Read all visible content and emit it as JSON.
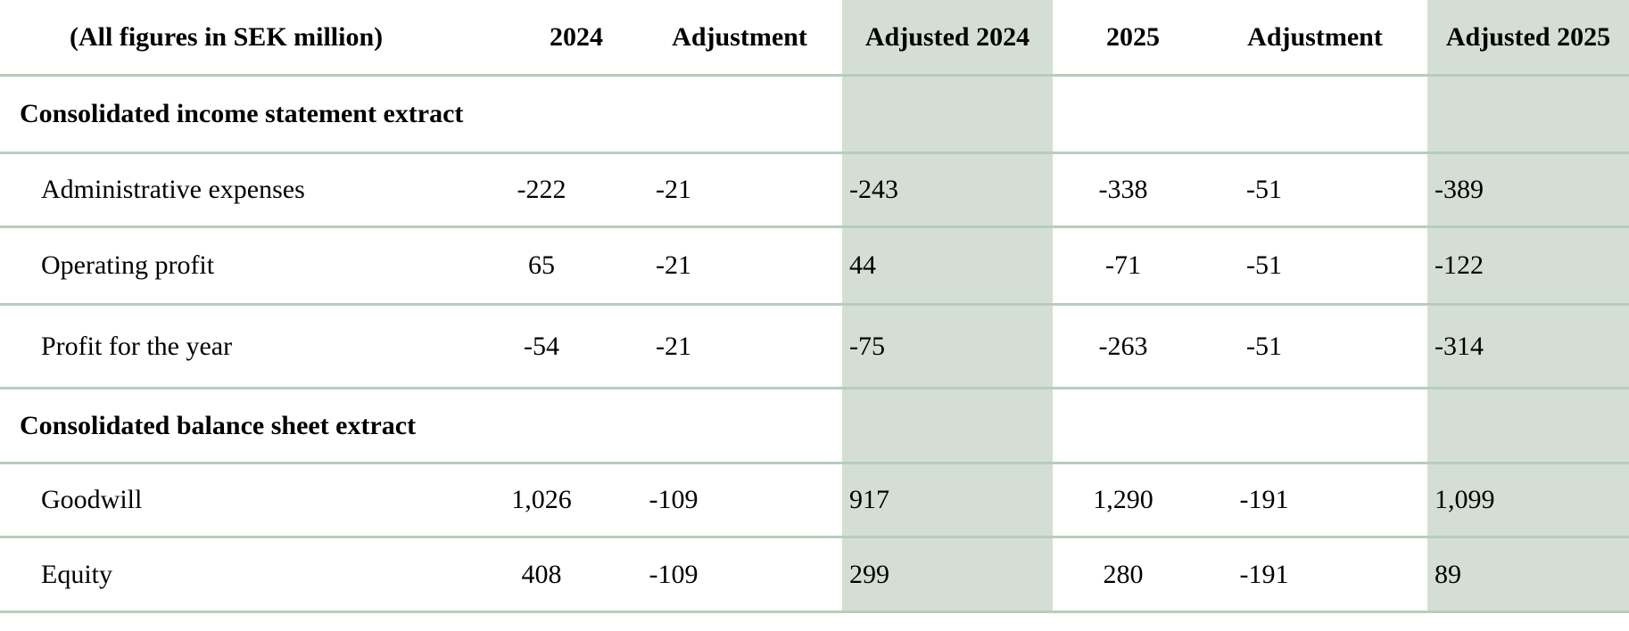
{
  "table": {
    "unit_label": "(All figures in SEK million)",
    "columns": [
      "2024",
      "Adjustment",
      "Adjusted 2024",
      "2025",
      "Adjustment",
      "Adjusted 2025"
    ],
    "sections": [
      {
        "title": "Consolidated income statement extract",
        "rows": [
          {
            "label": "Administrative expenses",
            "values": [
              "-222",
              "-21",
              "-243",
              "-338",
              "-51",
              "-389"
            ]
          },
          {
            "label": "Operating profit",
            "values": [
              "65",
              "-21",
              "44",
              "-71",
              "-51",
              "-122"
            ]
          },
          {
            "label": "Profit for the year",
            "values": [
              "-54",
              "-21",
              "-75",
              "-263",
              "-51",
              "-314"
            ]
          }
        ]
      },
      {
        "title": "Consolidated balance sheet extract",
        "rows": [
          {
            "label": "Goodwill",
            "values": [
              "1,026",
              "-109",
              "917",
              "1,290",
              "-191",
              "1,099"
            ]
          },
          {
            "label": "Equity",
            "values": [
              "408",
              "-109",
              "299",
              "280",
              "-191",
              "89"
            ]
          }
        ]
      }
    ],
    "colors": {
      "highlight_fill": "#d4ded4",
      "row_border": "#b8ccbc"
    }
  }
}
